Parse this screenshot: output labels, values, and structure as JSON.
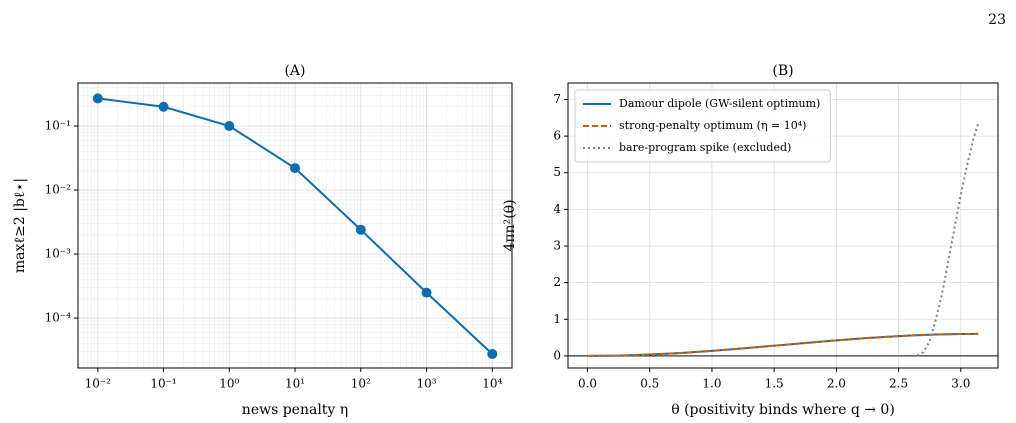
{
  "page_number": "23",
  "chart_data": [
    {
      "type": "line",
      "title": "(A)",
      "x_label": "news penalty η",
      "y_label": "maxℓ≥2 |bℓ⋆|",
      "xscale": "log",
      "yscale": "log",
      "grid": true,
      "minor_grid": true,
      "markers": true,
      "color": "#0a6fb0",
      "x": [
        0.01,
        0.1,
        1,
        10,
        100,
        1000,
        10000
      ],
      "values": [
        0.27,
        0.2,
        0.1,
        0.022,
        0.0024,
        0.00025,
        2.75e-05
      ],
      "xlim": [
        0.005,
        19953
      ],
      "ylim": [
        1.66e-05,
        0.47
      ],
      "xticks": [
        {
          "value": 0.01,
          "label": "10⁻²"
        },
        {
          "value": 0.1,
          "label": "10⁻¹"
        },
        {
          "value": 1,
          "label": "10⁰"
        },
        {
          "value": 10,
          "label": "10¹"
        },
        {
          "value": 100,
          "label": "10²"
        },
        {
          "value": 1000,
          "label": "10³"
        },
        {
          "value": 10000,
          "label": "10⁴"
        }
      ],
      "yticks": [
        {
          "value": 0.1,
          "label": "10⁻¹"
        },
        {
          "value": 0.01,
          "label": "10⁻²"
        },
        {
          "value": 0.001,
          "label": "10⁻³"
        },
        {
          "value": 0.0001,
          "label": "10⁻⁴"
        }
      ]
    },
    {
      "type": "line",
      "title": "(B)",
      "x_label": "θ  (positivity binds where q → 0)",
      "y_label": "4πn²(θ)",
      "grid": true,
      "zero_line": true,
      "legend": "upper left",
      "x": [
        0,
        0.25,
        0.5,
        0.75,
        1.0,
        1.25,
        1.5,
        1.75,
        2.0,
        2.25,
        2.5,
        2.6,
        2.65,
        2.7,
        2.75,
        2.8,
        2.85,
        2.9,
        2.95,
        3.0,
        3.05,
        3.1,
        3.14
      ],
      "series": [
        {
          "name": "Damour dipole (GW-silent optimum)",
          "color": "#0a6fb0",
          "linestyle": "solid",
          "values": [
            0,
            0.009,
            0.037,
            0.08,
            0.138,
            0.205,
            0.279,
            0.353,
            0.425,
            0.488,
            0.54,
            0.557,
            0.565,
            0.571,
            0.577,
            0.583,
            0.587,
            0.591,
            0.595,
            0.597,
            0.599,
            0.6,
            0.6
          ]
        },
        {
          "name": "strong-penalty optimum (η = 10⁴)",
          "color": "#d55e00",
          "linestyle": "dashed",
          "values": [
            0,
            0.009,
            0.037,
            0.08,
            0.138,
            0.205,
            0.279,
            0.353,
            0.425,
            0.488,
            0.54,
            0.557,
            0.565,
            0.571,
            0.577,
            0.583,
            0.587,
            0.591,
            0.595,
            0.597,
            0.599,
            0.6,
            0.6
          ]
        },
        {
          "name": "bare-program spike (excluded)",
          "color": "#808080",
          "linestyle": "dotted",
          "values": [
            0,
            0,
            0,
            0,
            0,
            0,
            0,
            0,
            0,
            0,
            0,
            0,
            0,
            0.1,
            0.4,
            1.0,
            1.7,
            2.6,
            3.5,
            4.4,
            5.2,
            5.9,
            6.36
          ]
        }
      ],
      "xlim": [
        -0.157,
        3.299
      ],
      "ylim": [
        -0.33,
        7.45
      ],
      "xticks": [
        {
          "value": 0,
          "label": "0.0"
        },
        {
          "value": 0.5,
          "label": "0.5"
        },
        {
          "value": 1,
          "label": "1.0"
        },
        {
          "value": 1.5,
          "label": "1.5"
        },
        {
          "value": 2,
          "label": "2.0"
        },
        {
          "value": 2.5,
          "label": "2.5"
        },
        {
          "value": 3,
          "label": "3.0"
        }
      ],
      "yticks": [
        0,
        1,
        2,
        3,
        4,
        5,
        6,
        7
      ]
    }
  ]
}
